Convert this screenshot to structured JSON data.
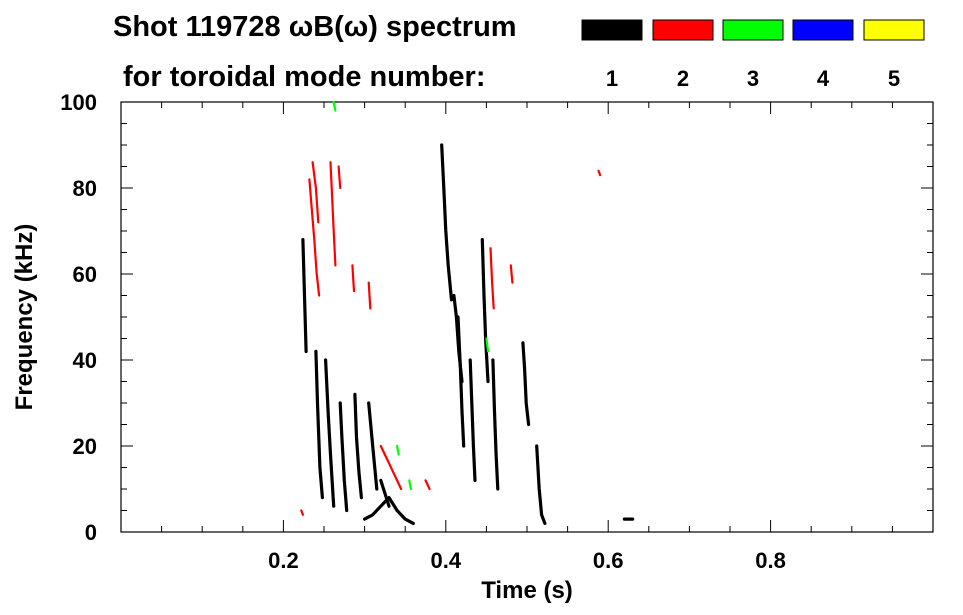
{
  "header": {
    "title": "Shot 119728 ωB(ω) spectrum",
    "legend_caption": "for toroidal mode number:"
  },
  "chart_data": {
    "type": "heatmap",
    "title": "Shot 119728 ωB(ω) spectrum",
    "xlabel": "Time (s)",
    "ylabel": "Frequency (kHz)",
    "xlim": [
      0.0,
      1.0
    ],
    "ylim": [
      0,
      100
    ],
    "x_ticks": [
      0.2,
      0.4,
      0.6,
      0.8
    ],
    "x_tick_labels": [
      "0.2",
      "0.4",
      "0.6",
      "0.8"
    ],
    "y_ticks": [
      0,
      20,
      40,
      60,
      80,
      100
    ],
    "y_tick_labels": [
      "0",
      "20",
      "40",
      "60",
      "80",
      "100"
    ],
    "legend_placement": "top-right",
    "grid": false,
    "modes": [
      {
        "name": "1",
        "color": "#000000"
      },
      {
        "name": "2",
        "color": "#ff0000"
      },
      {
        "name": "3",
        "color": "#00ff00"
      },
      {
        "name": "4",
        "color": "#0000ff"
      },
      {
        "name": "5",
        "color": "#ffff00"
      }
    ],
    "series": [
      {
        "name": "1",
        "color": "#000000",
        "traces": [
          [
            [
              0.224,
              68
            ],
            [
              0.226,
              55
            ],
            [
              0.228,
              42
            ]
          ],
          [
            [
              0.24,
              42
            ],
            [
              0.242,
              30
            ],
            [
              0.245,
              15
            ],
            [
              0.248,
              8
            ]
          ],
          [
            [
              0.252,
              40
            ],
            [
              0.255,
              28
            ],
            [
              0.258,
              18
            ],
            [
              0.262,
              6
            ]
          ],
          [
            [
              0.27,
              30
            ],
            [
              0.272,
              22
            ],
            [
              0.275,
              12
            ],
            [
              0.278,
              5
            ]
          ],
          [
            [
              0.288,
              32
            ],
            [
              0.29,
              22
            ],
            [
              0.293,
              14
            ],
            [
              0.296,
              8
            ]
          ],
          [
            [
              0.305,
              30
            ],
            [
              0.31,
              20
            ],
            [
              0.315,
              10
            ]
          ],
          [
            [
              0.3,
              3
            ],
            [
              0.31,
              4
            ],
            [
              0.32,
              6
            ],
            [
              0.33,
              8
            ],
            [
              0.34,
              5
            ],
            [
              0.35,
              3
            ],
            [
              0.36,
              2
            ]
          ],
          [
            [
              0.32,
              12
            ],
            [
              0.325,
              9
            ],
            [
              0.33,
              6
            ]
          ],
          [
            [
              0.395,
              90
            ],
            [
              0.398,
              78
            ],
            [
              0.4,
              70
            ],
            [
              0.403,
              62
            ],
            [
              0.407,
              54
            ]
          ],
          [
            [
              0.41,
              55
            ],
            [
              0.413,
              50
            ],
            [
              0.416,
              42
            ],
            [
              0.42,
              35
            ]
          ],
          [
            [
              0.415,
              50
            ],
            [
              0.418,
              38
            ],
            [
              0.42,
              28
            ],
            [
              0.422,
              20
            ]
          ],
          [
            [
              0.43,
              40
            ],
            [
              0.432,
              30
            ],
            [
              0.434,
              20
            ],
            [
              0.436,
              12
            ]
          ],
          [
            [
              0.445,
              68
            ],
            [
              0.447,
              55
            ],
            [
              0.449,
              45
            ],
            [
              0.452,
              35
            ]
          ],
          [
            [
              0.458,
              40
            ],
            [
              0.46,
              28
            ],
            [
              0.462,
              18
            ],
            [
              0.464,
              10
            ]
          ],
          [
            [
              0.495,
              44
            ],
            [
              0.497,
              38
            ],
            [
              0.499,
              30
            ],
            [
              0.502,
              25
            ]
          ],
          [
            [
              0.512,
              20
            ],
            [
              0.515,
              10
            ],
            [
              0.518,
              4
            ],
            [
              0.522,
              2
            ]
          ],
          [
            [
              0.62,
              3
            ],
            [
              0.63,
              3
            ]
          ]
        ]
      },
      {
        "name": "2",
        "color": "#ff0000",
        "traces": [
          [
            [
              0.222,
              5
            ],
            [
              0.224,
              4
            ]
          ],
          [
            [
              0.232,
              82
            ],
            [
              0.235,
              75
            ],
            [
              0.238,
              68
            ],
            [
              0.241,
              60
            ],
            [
              0.244,
              55
            ]
          ],
          [
            [
              0.236,
              86
            ],
            [
              0.24,
              80
            ],
            [
              0.243,
              72
            ]
          ],
          [
            [
              0.258,
              86
            ],
            [
              0.26,
              78
            ],
            [
              0.262,
              70
            ],
            [
              0.264,
              62
            ]
          ],
          [
            [
              0.268,
              85
            ],
            [
              0.27,
              80
            ]
          ],
          [
            [
              0.285,
              62
            ],
            [
              0.287,
              56
            ]
          ],
          [
            [
              0.305,
              58
            ],
            [
              0.307,
              52
            ]
          ],
          [
            [
              0.32,
              20
            ],
            [
              0.325,
              18
            ],
            [
              0.33,
              16
            ],
            [
              0.335,
              14
            ],
            [
              0.34,
              12
            ],
            [
              0.345,
              10
            ]
          ],
          [
            [
              0.375,
              12
            ],
            [
              0.38,
              10
            ]
          ],
          [
            [
              0.455,
              66
            ],
            [
              0.457,
              58
            ],
            [
              0.459,
              52
            ]
          ],
          [
            [
              0.48,
              62
            ],
            [
              0.482,
              58
            ]
          ],
          [
            [
              0.588,
              84
            ],
            [
              0.59,
              83
            ]
          ]
        ]
      },
      {
        "name": "3",
        "color": "#00ff00",
        "traces": [
          [
            [
              0.262,
              100
            ],
            [
              0.264,
              98
            ]
          ],
          [
            [
              0.34,
              20
            ],
            [
              0.342,
              18
            ]
          ],
          [
            [
              0.355,
              12
            ],
            [
              0.357,
              10
            ]
          ],
          [
            [
              0.45,
              45
            ],
            [
              0.452,
              42
            ]
          ]
        ]
      },
      {
        "name": "4",
        "color": "#0000ff",
        "traces": []
      },
      {
        "name": "5",
        "color": "#ffff00",
        "traces": []
      }
    ]
  }
}
